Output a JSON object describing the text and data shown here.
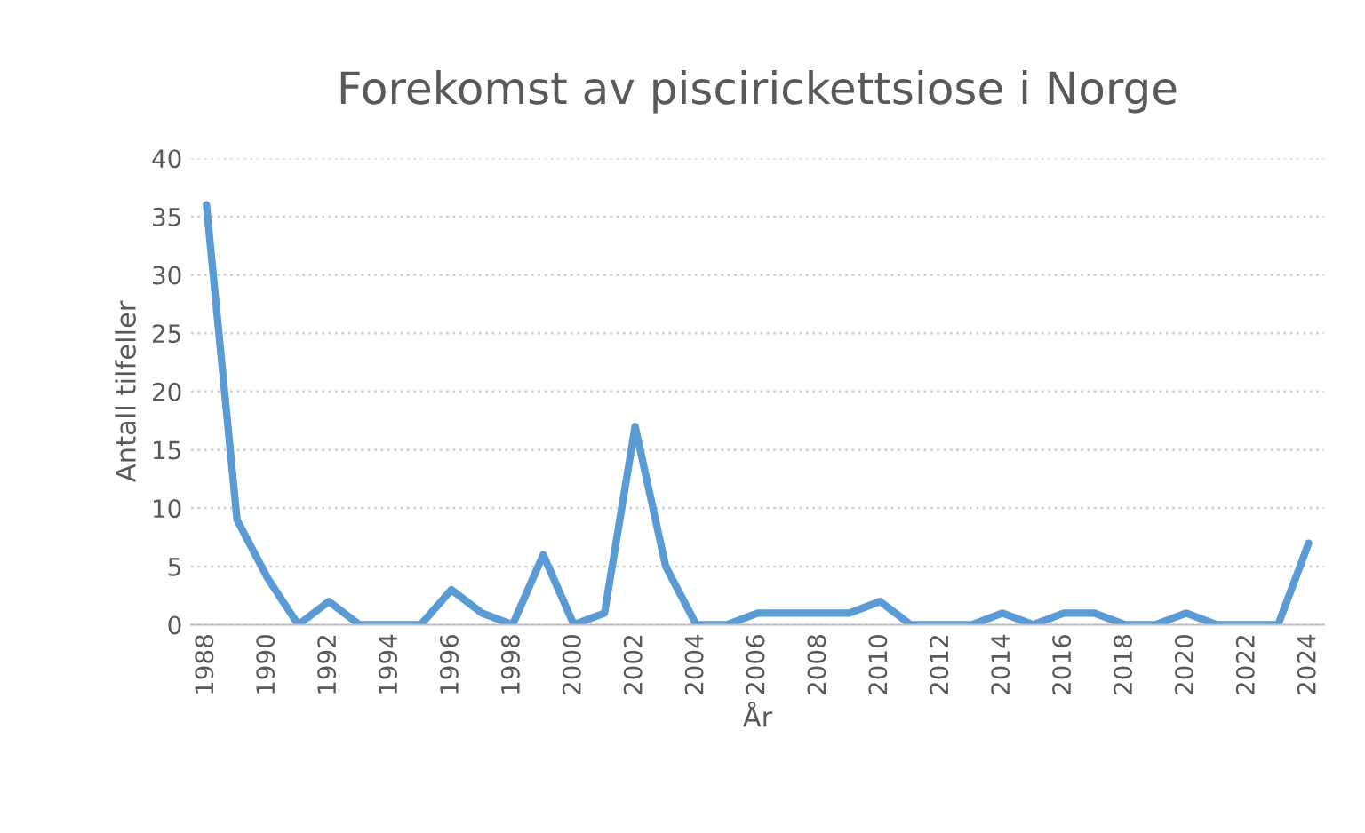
{
  "chart_data": {
    "type": "line",
    "title": "Forekomst av piscirickettsiose i Norge",
    "xlabel": "År",
    "ylabel": "Antall tilfeller",
    "categories": [
      "1988",
      null,
      "1990",
      null,
      "1992",
      null,
      "1994",
      null,
      "1996",
      null,
      "1998",
      null,
      "2000",
      null,
      "2002",
      null,
      "2004",
      null,
      "2006",
      null,
      "2008",
      null,
      "2010",
      null,
      "2012",
      null,
      "2014",
      null,
      "2016",
      null,
      "2018",
      null,
      "2020",
      null,
      "2022",
      null,
      "2024"
    ],
    "series": [
      {
        "color": "#5b9bd5",
        "values": [
          36,
          9,
          4,
          0,
          2,
          0,
          0,
          0,
          3,
          1,
          0,
          6,
          0,
          1,
          17,
          5,
          0,
          0,
          1,
          1,
          1,
          1,
          2,
          0,
          0,
          0,
          1,
          0,
          1,
          1,
          0,
          0,
          1,
          0,
          0,
          0,
          7
        ]
      }
    ],
    "ylim": [
      0,
      40
    ],
    "yticks": [
      0,
      5,
      10,
      15,
      20,
      25,
      30,
      35,
      40
    ],
    "grid": "y",
    "legend": false,
    "marker": "none",
    "line_style": "solid"
  }
}
